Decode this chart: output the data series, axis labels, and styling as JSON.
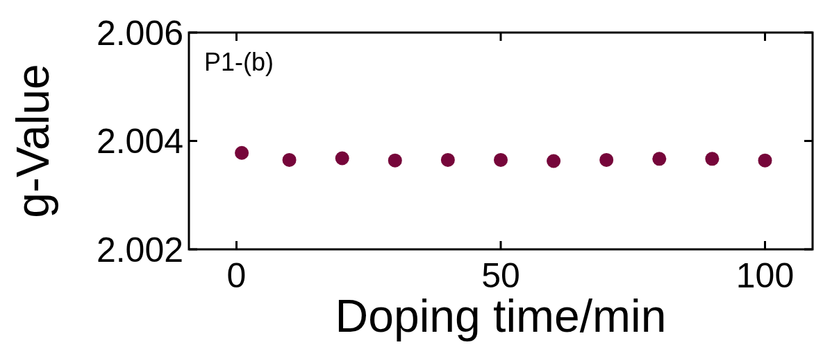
{
  "chart_data": {
    "type": "scatter",
    "xlabel": "Doping time/min",
    "ylabel": "g-Value",
    "annotations": [
      "P1-(b)"
    ],
    "x": [
      1,
      10,
      20,
      30,
      40,
      50,
      60,
      70,
      80,
      90,
      100
    ],
    "series": [
      {
        "color": "#76063a",
        "values": [
          2.00378,
          2.00365,
          2.00368,
          2.00364,
          2.00365,
          2.00365,
          2.00363,
          2.00365,
          2.00367,
          2.00367,
          2.00364
        ]
      }
    ],
    "xlim": [
      -9,
      109
    ],
    "xticks": [
      0,
      50,
      100
    ],
    "ylim": [
      2.002,
      2.006
    ],
    "yticks": [
      {
        "value": 2.002,
        "label": "2.002"
      },
      {
        "value": 2.004,
        "label": "2.004"
      },
      {
        "value": 2.006,
        "label": "2.006"
      }
    ],
    "marker": "circle",
    "grid": false
  }
}
